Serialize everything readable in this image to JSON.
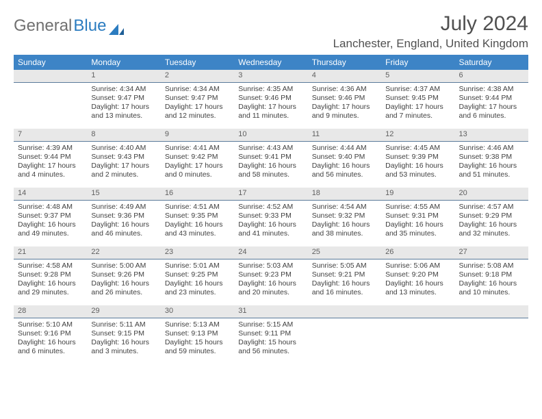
{
  "logo": {
    "general": "General",
    "blue": "Blue"
  },
  "header": {
    "title": "July 2024",
    "location": "Lanchester, England, United Kingdom"
  },
  "colors": {
    "header_bg": "#3d84c6",
    "header_text": "#ffffff",
    "daynum_bg": "#e8e8e8",
    "daynum_border": "#5a7a9a",
    "body_text": "#404040",
    "title_text": "#505050",
    "logo_gray": "#707070",
    "logo_blue": "#2b7cc0"
  },
  "weekdays": [
    "Sunday",
    "Monday",
    "Tuesday",
    "Wednesday",
    "Thursday",
    "Friday",
    "Saturday"
  ],
  "weeks": [
    [
      null,
      {
        "n": "1",
        "sr": "Sunrise: 4:34 AM",
        "ss": "Sunset: 9:47 PM",
        "d1": "Daylight: 17 hours",
        "d2": "and 13 minutes."
      },
      {
        "n": "2",
        "sr": "Sunrise: 4:34 AM",
        "ss": "Sunset: 9:47 PM",
        "d1": "Daylight: 17 hours",
        "d2": "and 12 minutes."
      },
      {
        "n": "3",
        "sr": "Sunrise: 4:35 AM",
        "ss": "Sunset: 9:46 PM",
        "d1": "Daylight: 17 hours",
        "d2": "and 11 minutes."
      },
      {
        "n": "4",
        "sr": "Sunrise: 4:36 AM",
        "ss": "Sunset: 9:46 PM",
        "d1": "Daylight: 17 hours",
        "d2": "and 9 minutes."
      },
      {
        "n": "5",
        "sr": "Sunrise: 4:37 AM",
        "ss": "Sunset: 9:45 PM",
        "d1": "Daylight: 17 hours",
        "d2": "and 7 minutes."
      },
      {
        "n": "6",
        "sr": "Sunrise: 4:38 AM",
        "ss": "Sunset: 9:44 PM",
        "d1": "Daylight: 17 hours",
        "d2": "and 6 minutes."
      }
    ],
    [
      {
        "n": "7",
        "sr": "Sunrise: 4:39 AM",
        "ss": "Sunset: 9:44 PM",
        "d1": "Daylight: 17 hours",
        "d2": "and 4 minutes."
      },
      {
        "n": "8",
        "sr": "Sunrise: 4:40 AM",
        "ss": "Sunset: 9:43 PM",
        "d1": "Daylight: 17 hours",
        "d2": "and 2 minutes."
      },
      {
        "n": "9",
        "sr": "Sunrise: 4:41 AM",
        "ss": "Sunset: 9:42 PM",
        "d1": "Daylight: 17 hours",
        "d2": "and 0 minutes."
      },
      {
        "n": "10",
        "sr": "Sunrise: 4:43 AM",
        "ss": "Sunset: 9:41 PM",
        "d1": "Daylight: 16 hours",
        "d2": "and 58 minutes."
      },
      {
        "n": "11",
        "sr": "Sunrise: 4:44 AM",
        "ss": "Sunset: 9:40 PM",
        "d1": "Daylight: 16 hours",
        "d2": "and 56 minutes."
      },
      {
        "n": "12",
        "sr": "Sunrise: 4:45 AM",
        "ss": "Sunset: 9:39 PM",
        "d1": "Daylight: 16 hours",
        "d2": "and 53 minutes."
      },
      {
        "n": "13",
        "sr": "Sunrise: 4:46 AM",
        "ss": "Sunset: 9:38 PM",
        "d1": "Daylight: 16 hours",
        "d2": "and 51 minutes."
      }
    ],
    [
      {
        "n": "14",
        "sr": "Sunrise: 4:48 AM",
        "ss": "Sunset: 9:37 PM",
        "d1": "Daylight: 16 hours",
        "d2": "and 49 minutes."
      },
      {
        "n": "15",
        "sr": "Sunrise: 4:49 AM",
        "ss": "Sunset: 9:36 PM",
        "d1": "Daylight: 16 hours",
        "d2": "and 46 minutes."
      },
      {
        "n": "16",
        "sr": "Sunrise: 4:51 AM",
        "ss": "Sunset: 9:35 PM",
        "d1": "Daylight: 16 hours",
        "d2": "and 43 minutes."
      },
      {
        "n": "17",
        "sr": "Sunrise: 4:52 AM",
        "ss": "Sunset: 9:33 PM",
        "d1": "Daylight: 16 hours",
        "d2": "and 41 minutes."
      },
      {
        "n": "18",
        "sr": "Sunrise: 4:54 AM",
        "ss": "Sunset: 9:32 PM",
        "d1": "Daylight: 16 hours",
        "d2": "and 38 minutes."
      },
      {
        "n": "19",
        "sr": "Sunrise: 4:55 AM",
        "ss": "Sunset: 9:31 PM",
        "d1": "Daylight: 16 hours",
        "d2": "and 35 minutes."
      },
      {
        "n": "20",
        "sr": "Sunrise: 4:57 AM",
        "ss": "Sunset: 9:29 PM",
        "d1": "Daylight: 16 hours",
        "d2": "and 32 minutes."
      }
    ],
    [
      {
        "n": "21",
        "sr": "Sunrise: 4:58 AM",
        "ss": "Sunset: 9:28 PM",
        "d1": "Daylight: 16 hours",
        "d2": "and 29 minutes."
      },
      {
        "n": "22",
        "sr": "Sunrise: 5:00 AM",
        "ss": "Sunset: 9:26 PM",
        "d1": "Daylight: 16 hours",
        "d2": "and 26 minutes."
      },
      {
        "n": "23",
        "sr": "Sunrise: 5:01 AM",
        "ss": "Sunset: 9:25 PM",
        "d1": "Daylight: 16 hours",
        "d2": "and 23 minutes."
      },
      {
        "n": "24",
        "sr": "Sunrise: 5:03 AM",
        "ss": "Sunset: 9:23 PM",
        "d1": "Daylight: 16 hours",
        "d2": "and 20 minutes."
      },
      {
        "n": "25",
        "sr": "Sunrise: 5:05 AM",
        "ss": "Sunset: 9:21 PM",
        "d1": "Daylight: 16 hours",
        "d2": "and 16 minutes."
      },
      {
        "n": "26",
        "sr": "Sunrise: 5:06 AM",
        "ss": "Sunset: 9:20 PM",
        "d1": "Daylight: 16 hours",
        "d2": "and 13 minutes."
      },
      {
        "n": "27",
        "sr": "Sunrise: 5:08 AM",
        "ss": "Sunset: 9:18 PM",
        "d1": "Daylight: 16 hours",
        "d2": "and 10 minutes."
      }
    ],
    [
      {
        "n": "28",
        "sr": "Sunrise: 5:10 AM",
        "ss": "Sunset: 9:16 PM",
        "d1": "Daylight: 16 hours",
        "d2": "and 6 minutes."
      },
      {
        "n": "29",
        "sr": "Sunrise: 5:11 AM",
        "ss": "Sunset: 9:15 PM",
        "d1": "Daylight: 16 hours",
        "d2": "and 3 minutes."
      },
      {
        "n": "30",
        "sr": "Sunrise: 5:13 AM",
        "ss": "Sunset: 9:13 PM",
        "d1": "Daylight: 15 hours",
        "d2": "and 59 minutes."
      },
      {
        "n": "31",
        "sr": "Sunrise: 5:15 AM",
        "ss": "Sunset: 9:11 PM",
        "d1": "Daylight: 15 hours",
        "d2": "and 56 minutes."
      },
      null,
      null,
      null
    ]
  ]
}
